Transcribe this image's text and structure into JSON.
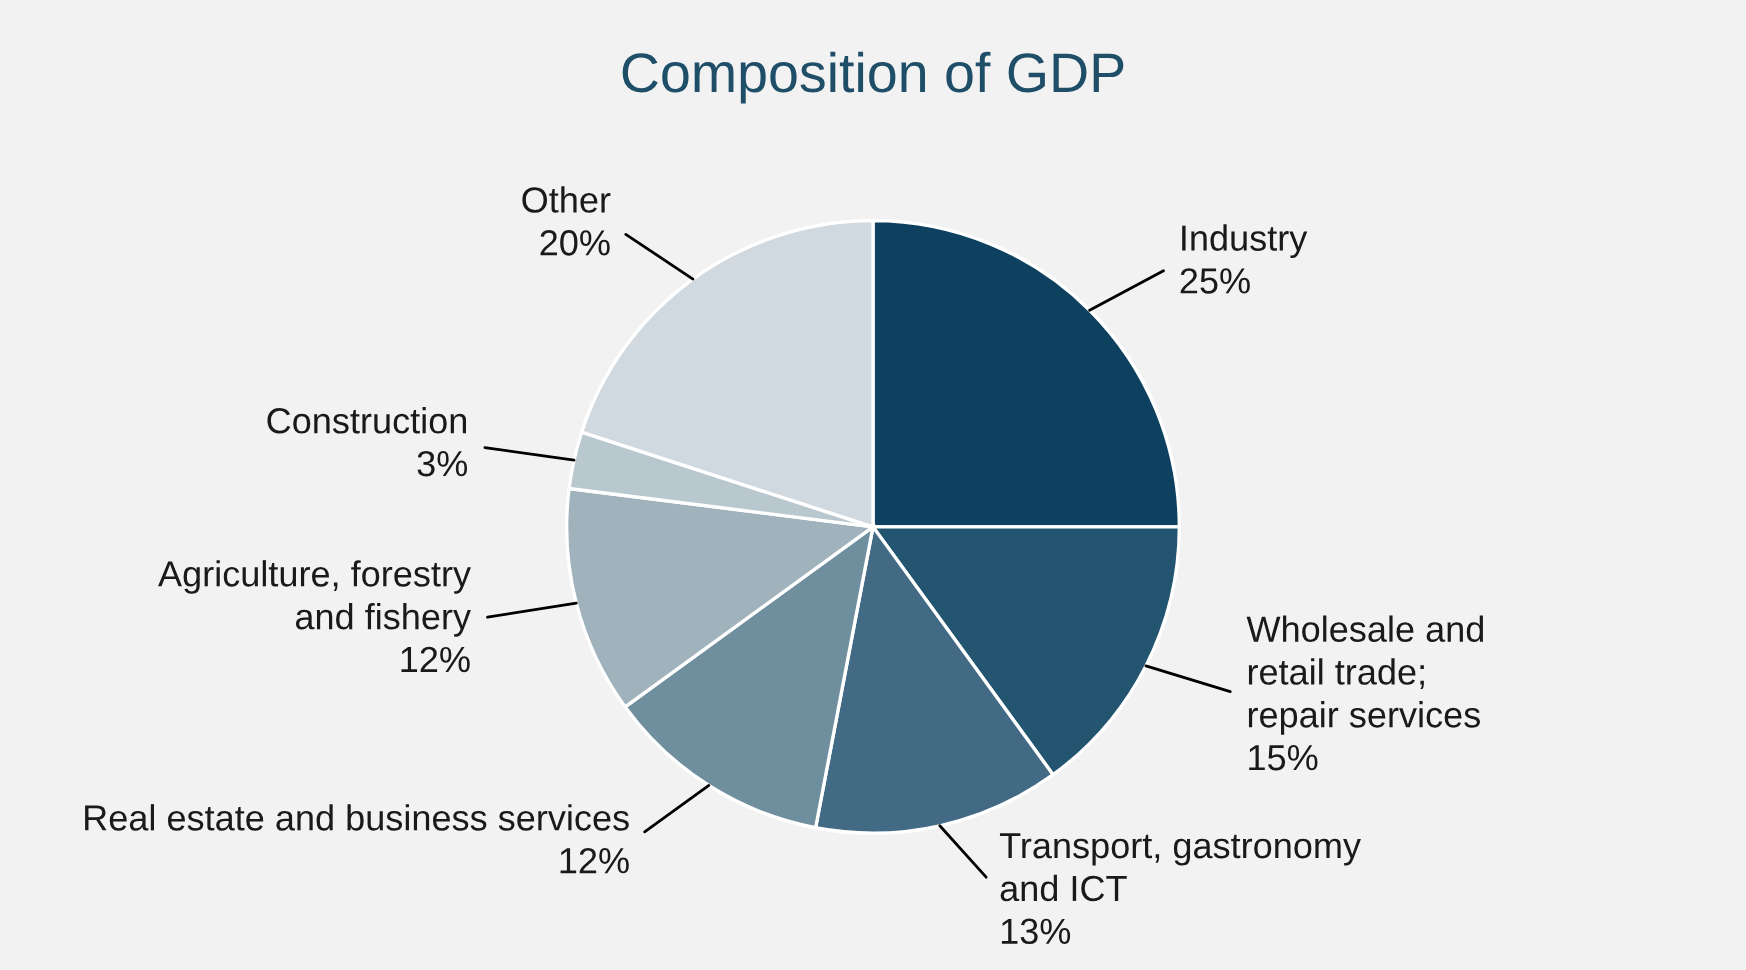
{
  "chart_data": {
    "type": "pie",
    "title": "Composition of GDP",
    "categories": [
      "Industry",
      "Wholesale and\nretail trade;\nrepair services",
      "Transport, gastronomy\nand ICT",
      "Real estate and business services",
      "Agriculture, forestry\nand fishery",
      "Construction",
      "Other"
    ],
    "values": [
      25,
      15,
      13,
      12,
      12,
      3,
      20
    ],
    "value_labels": [
      "25%",
      "15%",
      "13%",
      "12%",
      "12%",
      "3%",
      "20%"
    ],
    "colors": [
      "#0e4160",
      "#235470",
      "#426a85",
      "#6f8f9f",
      "#a0b2bb",
      "#b9c7cf",
      "#d0d9df"
    ],
    "legend": false
  }
}
